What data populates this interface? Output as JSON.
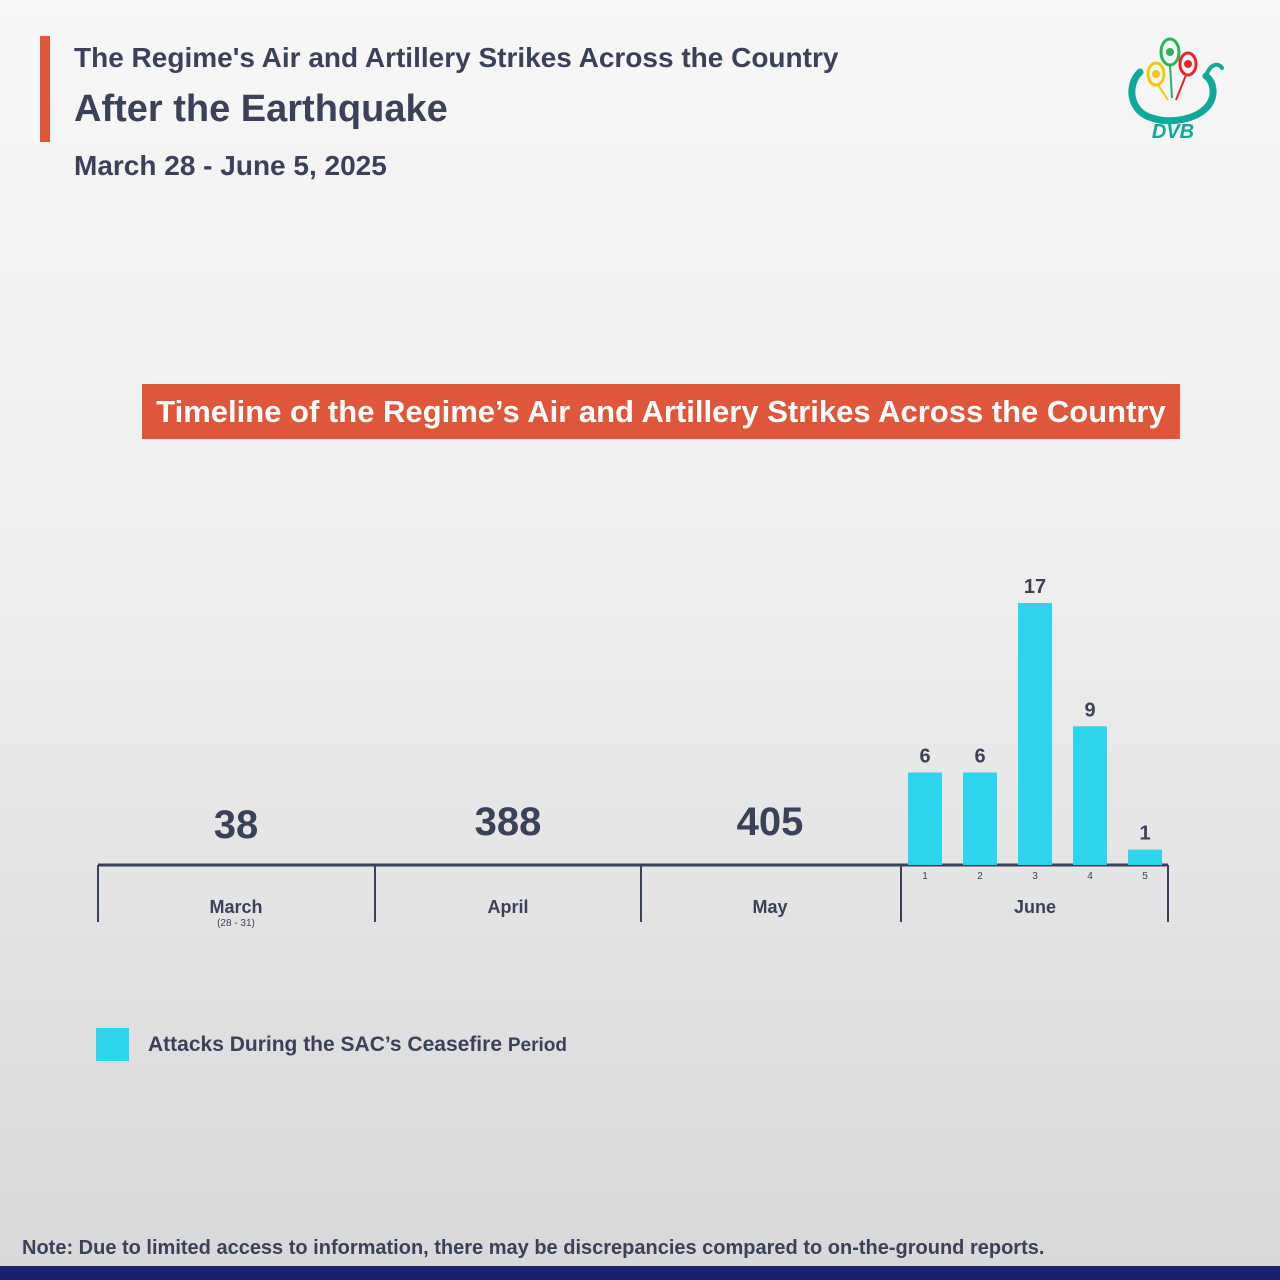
{
  "header": {
    "title_line1": "The Regime's Air and Artillery Strikes Across the Country",
    "title_line2": "After the Earthquake",
    "date_range": "March 28 - June 5, 2025",
    "logo_text": "DVB"
  },
  "colors": {
    "accent": "#e0563a",
    "bar": "#2ed3ee",
    "text": "#3b4258",
    "bottom_bar": "#1b1f6e"
  },
  "chart_data": {
    "type": "bar",
    "title": "Timeline of the Regime’s Air and Artillery Strikes Across the Country",
    "monthly_totals": [
      {
        "month": "March",
        "sub": "(28 - 31)",
        "value": "38"
      },
      {
        "month": "April",
        "sub": "",
        "value": "388"
      },
      {
        "month": "May",
        "sub": "",
        "value": "405"
      }
    ],
    "june": {
      "month": "June",
      "categories": [
        "1",
        "2",
        "3",
        "4",
        "5"
      ],
      "values": [
        6,
        6,
        17,
        9,
        1
      ],
      "ylim": [
        0,
        17
      ]
    },
    "legend": {
      "label": "Attacks During the SAC’s Ceasefire",
      "suffix": "Period"
    }
  },
  "footer": {
    "note": "Note: Due to limited access to information, there may be discrepancies compared to on-the-ground reports."
  }
}
